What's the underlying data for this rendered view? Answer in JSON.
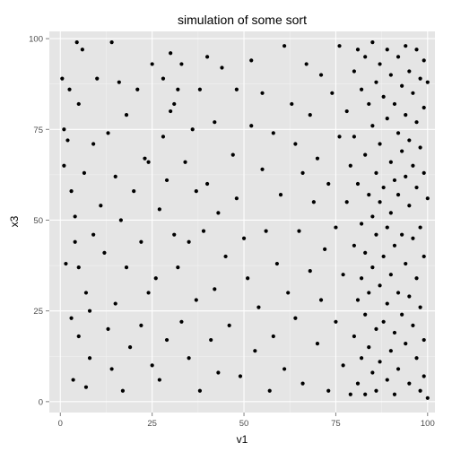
{
  "chart_data": {
    "type": "scatter",
    "title": "simulation of some sort",
    "xlabel": "v1",
    "ylabel": "x3",
    "xlim": [
      -3,
      102
    ],
    "ylim": [
      -3,
      102
    ],
    "x_ticks": [
      0,
      25,
      50,
      75,
      100
    ],
    "y_ticks": [
      0,
      25,
      50,
      75,
      100
    ],
    "x_tick_labels": [
      "0",
      "25",
      "50",
      "75",
      "100"
    ],
    "y_tick_labels": [
      "0",
      "25",
      "50",
      "75",
      "100"
    ],
    "grid": true,
    "colors": {
      "panel": "#e5e5e5",
      "grid_major": "#ffffff",
      "grid_minor": "#f2f2f2",
      "points": "#000000",
      "tick_text": "#4d4d4d"
    },
    "series": [
      {
        "points": [
          [
            0.5,
            89
          ],
          [
            1,
            75
          ],
          [
            1,
            65
          ],
          [
            1.5,
            38
          ],
          [
            2,
            72
          ],
          [
            2.5,
            86
          ],
          [
            3,
            58
          ],
          [
            3,
            23
          ],
          [
            3.5,
            6
          ],
          [
            4,
            51
          ],
          [
            4,
            44
          ],
          [
            4.5,
            99
          ],
          [
            5,
            82
          ],
          [
            5,
            18
          ],
          [
            5,
            37
          ],
          [
            6,
            97
          ],
          [
            6.5,
            63
          ],
          [
            7,
            30
          ],
          [
            7,
            4
          ],
          [
            8,
            12
          ],
          [
            8,
            25
          ],
          [
            9,
            46
          ],
          [
            9,
            71
          ],
          [
            10,
            89
          ],
          [
            11,
            54
          ],
          [
            12,
            41
          ],
          [
            13,
            20
          ],
          [
            13,
            74
          ],
          [
            14,
            99
          ],
          [
            14,
            9
          ],
          [
            15,
            27
          ],
          [
            15,
            62
          ],
          [
            16,
            88
          ],
          [
            16.5,
            50
          ],
          [
            17,
            3
          ],
          [
            18,
            37
          ],
          [
            18,
            79
          ],
          [
            19,
            15
          ],
          [
            20,
            58
          ],
          [
            21,
            86
          ],
          [
            22,
            44
          ],
          [
            22,
            21
          ],
          [
            23,
            67
          ],
          [
            24,
            66
          ],
          [
            24,
            30
          ],
          [
            25,
            93
          ],
          [
            25,
            10
          ],
          [
            26,
            34
          ],
          [
            27,
            53
          ],
          [
            27,
            6
          ],
          [
            28,
            89
          ],
          [
            28,
            73
          ],
          [
            29,
            61
          ],
          [
            29,
            17
          ],
          [
            30,
            96
          ],
          [
            30,
            80
          ],
          [
            31,
            82
          ],
          [
            31,
            46
          ],
          [
            32,
            86
          ],
          [
            32,
            37
          ],
          [
            33,
            93
          ],
          [
            33,
            22
          ],
          [
            34,
            66
          ],
          [
            35,
            44
          ],
          [
            35,
            12
          ],
          [
            36,
            75
          ],
          [
            37,
            28
          ],
          [
            37,
            58
          ],
          [
            38,
            86
          ],
          [
            38,
            3
          ],
          [
            39,
            47
          ],
          [
            40,
            60
          ],
          [
            40,
            95
          ],
          [
            41,
            17
          ],
          [
            42,
            31
          ],
          [
            42,
            77
          ],
          [
            43,
            8
          ],
          [
            43,
            52
          ],
          [
            44,
            92
          ],
          [
            45,
            40
          ],
          [
            46,
            21
          ],
          [
            47,
            68
          ],
          [
            48,
            56
          ],
          [
            48,
            86
          ],
          [
            49,
            7
          ],
          [
            50,
            45
          ],
          [
            51,
            34
          ],
          [
            52,
            94
          ],
          [
            52,
            76
          ],
          [
            53,
            14
          ],
          [
            54,
            26
          ],
          [
            55,
            64
          ],
          [
            55,
            85
          ],
          [
            56,
            47
          ],
          [
            57,
            3
          ],
          [
            58,
            18
          ],
          [
            58,
            74
          ],
          [
            59,
            38
          ],
          [
            60,
            57
          ],
          [
            61,
            98
          ],
          [
            61,
            9
          ],
          [
            62,
            30
          ],
          [
            63,
            82
          ],
          [
            64,
            71
          ],
          [
            64,
            23
          ],
          [
            65,
            47
          ],
          [
            66,
            63
          ],
          [
            66,
            5
          ],
          [
            67,
            93
          ],
          [
            68,
            36
          ],
          [
            68,
            79
          ],
          [
            69,
            55
          ],
          [
            70,
            16
          ],
          [
            70,
            67
          ],
          [
            71,
            90
          ],
          [
            71,
            28
          ],
          [
            72,
            42
          ],
          [
            73,
            3
          ],
          [
            73,
            60
          ],
          [
            74,
            85
          ],
          [
            75,
            22
          ],
          [
            75,
            48
          ],
          [
            76,
            73
          ],
          [
            76,
            98
          ],
          [
            77,
            10
          ],
          [
            77,
            35
          ],
          [
            78,
            80
          ],
          [
            78,
            55
          ],
          [
            79,
            2
          ],
          [
            79,
            65
          ],
          [
            80,
            91
          ],
          [
            80,
            43
          ],
          [
            80,
            18
          ],
          [
            80,
            73
          ],
          [
            81,
            97
          ],
          [
            81,
            60
          ],
          [
            81,
            28
          ],
          [
            81,
            5
          ],
          [
            82,
            86
          ],
          [
            82,
            49
          ],
          [
            82,
            34
          ],
          [
            82,
            12
          ],
          [
            83,
            95
          ],
          [
            83,
            68
          ],
          [
            83,
            41
          ],
          [
            83,
            24
          ],
          [
            83,
            2
          ],
          [
            84,
            82
          ],
          [
            84,
            57
          ],
          [
            84,
            30
          ],
          [
            84,
            15
          ],
          [
            85,
            99
          ],
          [
            85,
            76
          ],
          [
            85,
            51
          ],
          [
            85,
            37
          ],
          [
            85,
            8
          ],
          [
            86,
            88
          ],
          [
            86,
            63
          ],
          [
            86,
            46
          ],
          [
            86,
            20
          ],
          [
            86,
            3
          ],
          [
            87,
            93
          ],
          [
            87,
            71
          ],
          [
            87,
            55
          ],
          [
            87,
            32
          ],
          [
            87,
            11
          ],
          [
            88,
            84
          ],
          [
            88,
            59
          ],
          [
            88,
            40
          ],
          [
            88,
            22
          ],
          [
            89,
            97
          ],
          [
            89,
            78
          ],
          [
            89,
            48
          ],
          [
            89,
            27
          ],
          [
            89,
            6
          ],
          [
            90,
            90
          ],
          [
            90,
            66
          ],
          [
            90,
            52
          ],
          [
            90,
            35
          ],
          [
            90,
            14
          ],
          [
            91,
            82
          ],
          [
            91,
            61
          ],
          [
            91,
            43
          ],
          [
            91,
            19
          ],
          [
            91,
            2
          ],
          [
            92,
            95
          ],
          [
            92,
            74
          ],
          [
            92,
            57
          ],
          [
            92,
            30
          ],
          [
            92,
            9
          ],
          [
            93,
            87
          ],
          [
            93,
            69
          ],
          [
            93,
            46
          ],
          [
            93,
            24
          ],
          [
            94,
            98
          ],
          [
            94,
            79
          ],
          [
            94,
            62
          ],
          [
            94,
            38
          ],
          [
            94,
            16
          ],
          [
            95,
            91
          ],
          [
            95,
            72
          ],
          [
            95,
            54
          ],
          [
            95,
            29
          ],
          [
            95,
            5
          ],
          [
            96,
            85
          ],
          [
            96,
            65
          ],
          [
            96,
            45
          ],
          [
            96,
            21
          ],
          [
            97,
            97
          ],
          [
            97,
            77
          ],
          [
            97,
            59
          ],
          [
            97,
            34
          ],
          [
            97,
            12
          ],
          [
            98,
            89
          ],
          [
            98,
            70
          ],
          [
            98,
            48
          ],
          [
            98,
            26
          ],
          [
            98,
            3
          ],
          [
            99,
            94
          ],
          [
            99,
            81
          ],
          [
            99,
            63
          ],
          [
            99,
            40
          ],
          [
            99,
            17
          ],
          [
            99,
            7
          ],
          [
            100,
            88
          ],
          [
            100,
            56
          ],
          [
            100,
            1
          ]
        ]
      }
    ]
  }
}
